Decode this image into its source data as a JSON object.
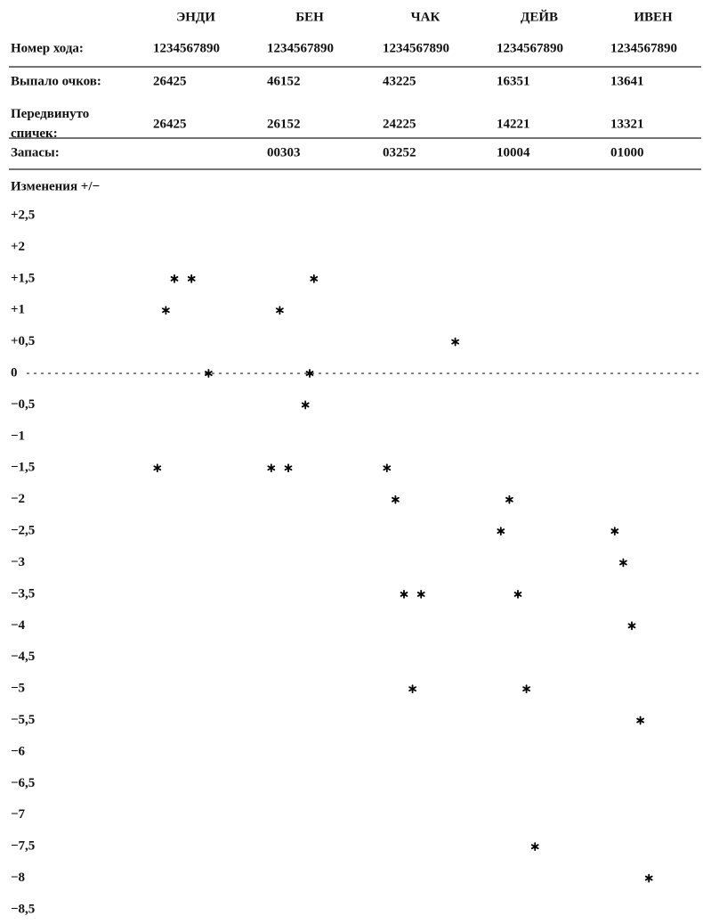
{
  "table": {
    "columns": [
      "ЭНДИ",
      "БЕН",
      "ЧАК",
      "ДЕЙВ",
      "ИВЕН"
    ],
    "rows": [
      [
        "Номер хода:",
        "1234567890",
        "1234567890",
        "1234567890",
        "1234567890",
        "1234567890"
      ],
      [
        "Выпало очков:",
        "26425",
        "46152",
        "43225",
        "16351",
        "13641"
      ],
      [
        "Передвинуто\nспичек:",
        "26425",
        "26152",
        "24225",
        "14221",
        "13321"
      ],
      [
        "Запасы:",
        null,
        "00303",
        "03252",
        "10004",
        "01000"
      ]
    ]
  },
  "chart_data": {
    "type": "scatter",
    "title": "Изменения +/−",
    "ylim": [
      -8.5,
      2.5
    ],
    "yticks": [
      {
        "value": 2.5,
        "label": "+2,5"
      },
      {
        "value": 2,
        "label": "+2"
      },
      {
        "value": 1.5,
        "label": "+1,5"
      },
      {
        "value": 1,
        "label": "+1"
      },
      {
        "value": 0.5,
        "label": "+0,5"
      },
      0,
      {
        "value": -0.5,
        "label": "−0,5"
      },
      {
        "value": -1,
        "label": "−1"
      },
      {
        "value": -1.5,
        "label": "−1,5"
      },
      {
        "value": -2,
        "label": "−2"
      },
      {
        "value": -2.5,
        "label": "−2,5"
      },
      {
        "value": -3,
        "label": "−3"
      },
      {
        "value": -3.5,
        "label": "−3,5"
      },
      {
        "value": -4,
        "label": "−4"
      },
      {
        "value": -4.5,
        "label": "−4,5"
      },
      {
        "value": -5,
        "label": "−5"
      },
      {
        "value": -5.5,
        "label": "−5,5"
      },
      {
        "value": -6,
        "label": "−6"
      },
      {
        "value": -6.5,
        "label": "−6,5"
      },
      {
        "value": -7,
        "label": "−7"
      },
      {
        "value": -7.5,
        "label": "−7,5"
      },
      {
        "value": -8,
        "label": "−8"
      },
      {
        "value": -8.5,
        "label": "−8,5"
      }
    ],
    "zero_line": true,
    "color": "#000000",
    "series": [
      {
        "x": [
          1,
          2,
          3,
          5,
          7
        ],
        "values": [
          -1.5,
          1,
          1.5,
          1.5,
          0
        ]
      },
      {
        "x": [
          1,
          2,
          3,
          5,
          5.5,
          6
        ],
        "values": [
          -1.5,
          1,
          -1.5,
          -0.5,
          0,
          1.5
        ]
      },
      {
        "x": [
          1,
          2,
          3,
          4,
          5,
          9
        ],
        "values": [
          -1.5,
          -2,
          -3.5,
          -5,
          -3.5,
          0.5
        ]
      },
      {
        "x": [
          1,
          2,
          3,
          4,
          5
        ],
        "values": [
          -2.5,
          -2,
          -3.5,
          -5,
          -7.5
        ]
      },
      {
        "x": [
          1,
          2,
          3,
          4,
          5
        ],
        "values": [
          -2.5,
          -3,
          -4,
          -5.5,
          -8
        ]
      }
    ]
  }
}
